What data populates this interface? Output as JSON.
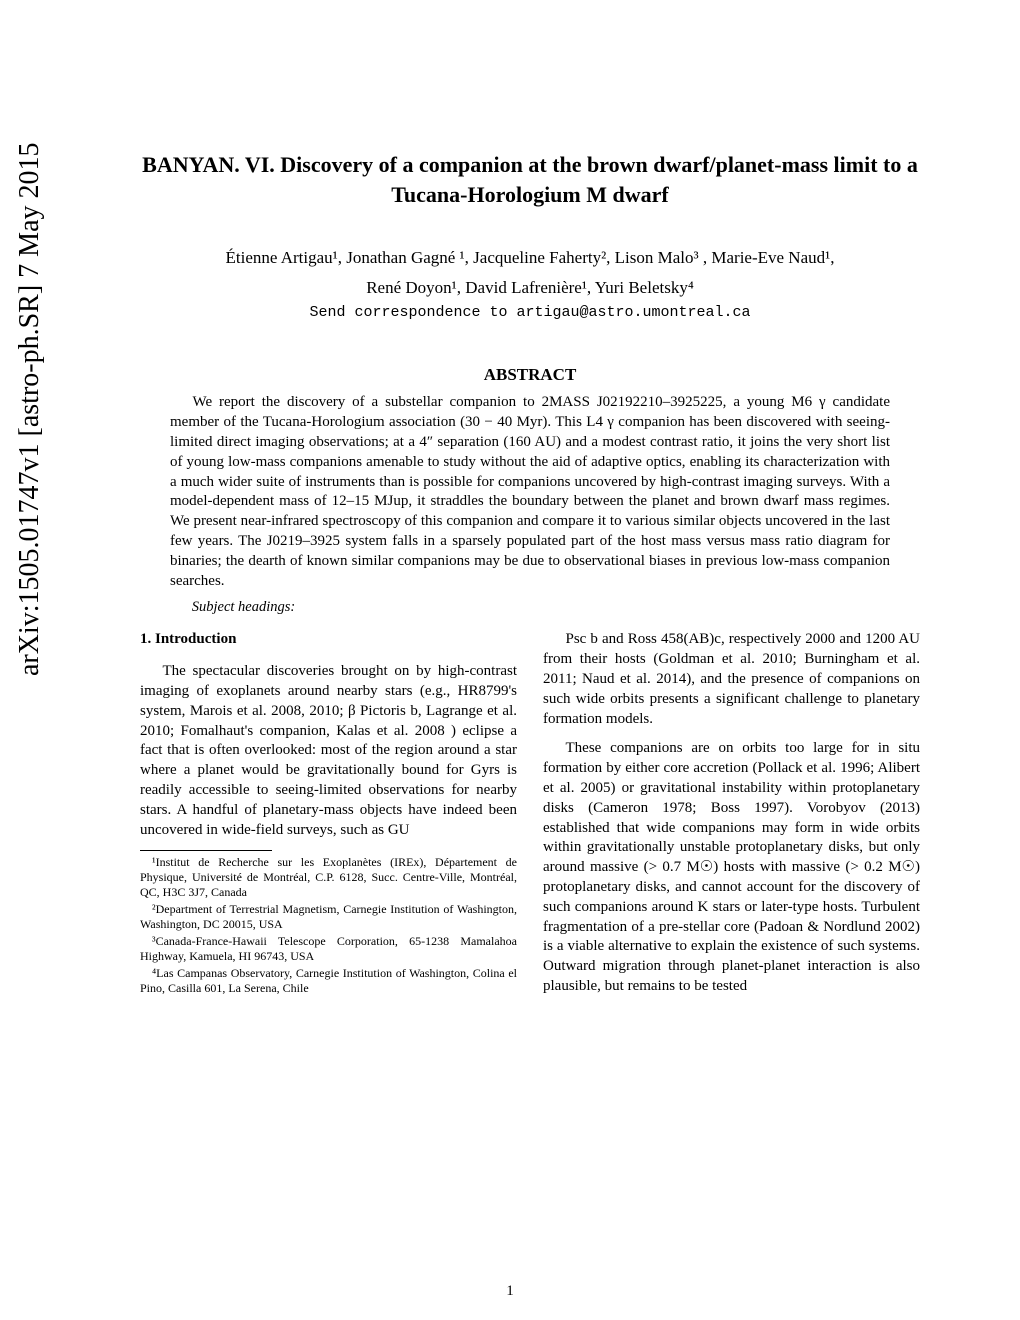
{
  "arxiv": {
    "id": "arXiv:1505.01747v1  [astro-ph.SR]  7 May 2015"
  },
  "title": "BANYAN. VI. Discovery of a companion at the brown dwarf/planet-mass limit to a Tucana-Horologium M dwarf",
  "authors_line1": "Étienne Artigau¹, Jonathan Gagné ¹, Jacqueline Faherty², Lison Malo³ , Marie-Eve Naud¹,",
  "authors_line2": "René Doyon¹, David Lafrenière¹, Yuri Beletsky⁴",
  "correspondence": "Send correspondence to artigau@astro.umontreal.ca",
  "abstract_heading": "ABSTRACT",
  "abstract": "We report the discovery of a substellar companion to 2MASS J02192210–3925225, a young M6 γ candidate member of the Tucana-Horologium association (30 − 40 Myr). This L4 γ companion has been discovered with seeing-limited direct imaging observations; at a 4″ separation (160 AU) and a modest contrast ratio, it joins the very short list of young low-mass companions amenable to study without the aid of adaptive optics, enabling its characterization with a much wider suite of instruments than is possible for companions uncovered by high-contrast imaging surveys. With a model-dependent mass of 12–15 MJup, it straddles the boundary between the planet and brown dwarf mass regimes. We present near-infrared spectroscopy of this companion and compare it to various similar objects uncovered in the last few years. The J0219–3925 system falls in a sparsely populated part of the host mass versus mass ratio diagram for binaries; the dearth of known similar companions may be due to observational biases in previous low-mass companion searches.",
  "subject_headings": "Subject headings:",
  "section1": {
    "heading": "1.    Introduction",
    "para1": "The spectacular discoveries brought on by high-contrast imaging of exoplanets around nearby stars (e.g., HR8799's system, Marois et al. 2008, 2010; β Pictoris b, Lagrange et al. 2010; Fomalhaut's companion, Kalas et al. 2008 ) eclipse a fact that is often overlooked: most of the region around a star where a planet would be gravitationally bound for Gyrs is readily accessible to seeing-limited observations for nearby stars. A handful of planetary-mass objects have indeed been uncovered in wide-field surveys, such as GU"
  },
  "col2": {
    "para1": "Psc b and Ross 458(AB)c, respectively 2000 and 1200 AU from their hosts (Goldman et al. 2010; Burningham et al. 2011; Naud et al. 2014), and the presence of companions on such wide orbits presents a significant challenge to planetary formation models.",
    "para2": "These companions are on orbits too large for in situ formation by either core accretion (Pollack et al. 1996; Alibert et al. 2005) or gravitational instability within protoplanetary disks (Cameron 1978; Boss 1997). Vorobyov (2013) established that wide companions may form in wide orbits within gravitationally unstable protoplanetary disks, but only around massive (> 0.7 M☉) hosts with massive (> 0.2 M☉) protoplanetary disks, and cannot account for the discovery of such companions around K stars or later-type hosts. Turbulent fragmentation of a pre-stellar core (Padoan & Nordlund 2002) is a viable alternative to explain the existence of such systems. Outward migration through planet-planet interaction is also plausible, but remains to be tested"
  },
  "footnotes": {
    "f1": "¹Institut de Recherche sur les Exoplanètes (IREx), Département de Physique, Université de Montréal, C.P. 6128, Succ. Centre-Ville, Montréal, QC, H3C 3J7, Canada",
    "f2": "²Department of Terrestrial Magnetism, Carnegie Institution of Washington, Washington, DC 20015, USA",
    "f3": "³Canada-France-Hawaii Telescope Corporation, 65-1238 Mamalahoa Highway, Kamuela, HI 96743, USA",
    "f4": "⁴Las Campanas Observatory, Carnegie Institution of Washington, Colina el Pino, Casilla 601, La Serena, Chile"
  },
  "page_number": "1"
}
